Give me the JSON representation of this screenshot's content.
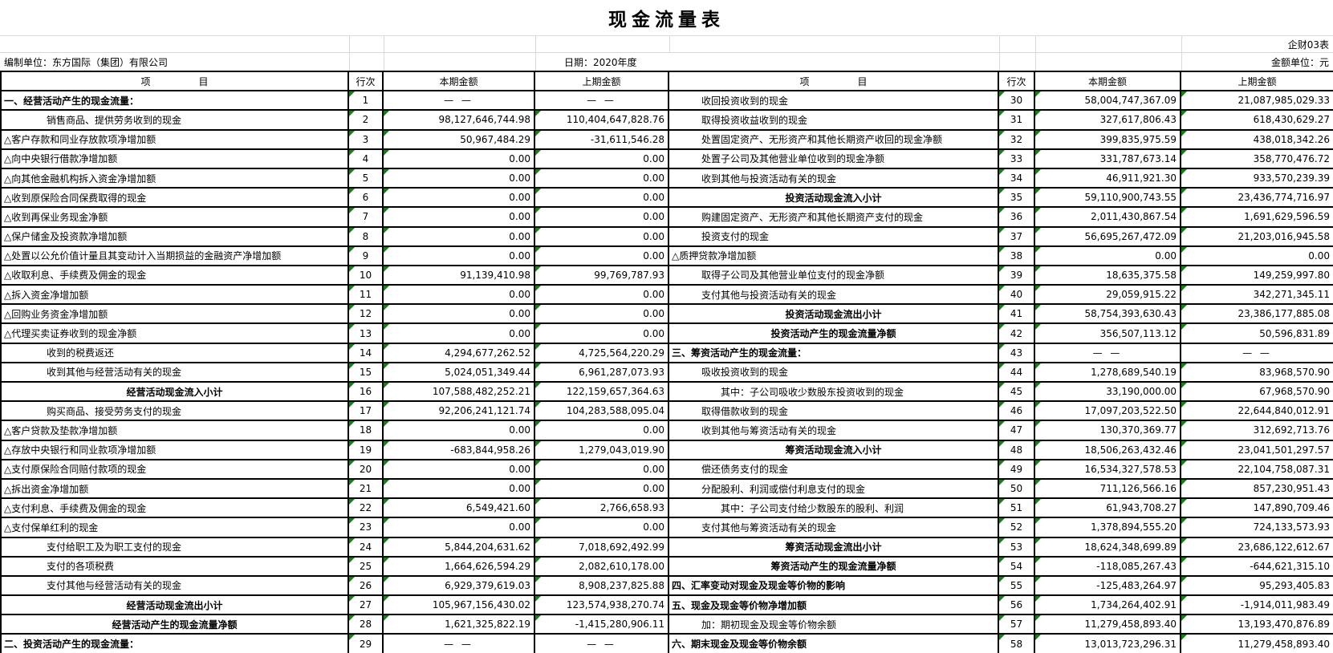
{
  "title": "现金流量表",
  "form_code": "企财03表",
  "prepared_by": "编制单位：东方国际（集团）有限公司",
  "report_date": "日期：2020年度",
  "unit": "金额单位：元",
  "header": {
    "item": "项　　　　　目",
    "line": "行次",
    "current": "本期金额",
    "prior": "上期金额"
  },
  "left_rows": [
    {
      "item": "一、经营活动产生的现金流量：",
      "line": "1",
      "cur": "— —",
      "pri": "— —",
      "style": "sec"
    },
    {
      "item": "销售商品、提供劳务收到的现金",
      "line": "2",
      "cur": "98,127,646,744.98",
      "pri": "110,404,647,828.76",
      "style": "i1"
    },
    {
      "item": "△客户存款和同业存放款项净增加额",
      "line": "3",
      "cur": "50,967,484.29",
      "pri": "-31,611,546.28",
      "style": "d0"
    },
    {
      "item": "△向中央银行借款净增加额",
      "line": "4",
      "cur": "0.00",
      "pri": "0.00",
      "style": "d0"
    },
    {
      "item": "△向其他金融机构拆入资金净增加额",
      "line": "5",
      "cur": "0.00",
      "pri": "0.00",
      "style": "d0"
    },
    {
      "item": "△收到原保险合同保费取得的现金",
      "line": "6",
      "cur": "0.00",
      "pri": "0.00",
      "style": "d0"
    },
    {
      "item": "△收到再保业务现金净额",
      "line": "7",
      "cur": "0.00",
      "pri": "0.00",
      "style": "d0"
    },
    {
      "item": "△保户储金及投资款净增加额",
      "line": "8",
      "cur": "0.00",
      "pri": "0.00",
      "style": "d0"
    },
    {
      "item": "△处置以公允价值计量且其变动计入当期损益的金融资产净增加额",
      "line": "9",
      "cur": "0.00",
      "pri": "0.00",
      "style": "d0"
    },
    {
      "item": "△收取利息、手续费及佣金的现金",
      "line": "10",
      "cur": "91,139,410.98",
      "pri": "99,769,787.93",
      "style": "d0"
    },
    {
      "item": "△拆入资金净增加额",
      "line": "11",
      "cur": "0.00",
      "pri": "0.00",
      "style": "d0"
    },
    {
      "item": "△回购业务资金净增加额",
      "line": "12",
      "cur": "0.00",
      "pri": "0.00",
      "style": "d0"
    },
    {
      "item": "△代理买卖证券收到的现金净额",
      "line": "13",
      "cur": "0.00",
      "pri": "0.00",
      "style": "d0"
    },
    {
      "item": "收到的税费返还",
      "line": "14",
      "cur": "4,294,677,262.52",
      "pri": "4,725,564,220.29",
      "style": "i1"
    },
    {
      "item": "收到其他与经营活动有关的现金",
      "line": "15",
      "cur": "5,024,051,349.44",
      "pri": "6,961,287,073.93",
      "style": "i1"
    },
    {
      "item": "经营活动现金流入小计",
      "line": "16",
      "cur": "107,588,482,252.21",
      "pri": "122,159,657,364.63",
      "style": "sub"
    },
    {
      "item": "购买商品、接受劳务支付的现金",
      "line": "17",
      "cur": "92,206,241,121.74",
      "pri": "104,283,588,095.04",
      "style": "i1"
    },
    {
      "item": "△客户贷款及垫款净增加额",
      "line": "18",
      "cur": "0.00",
      "pri": "0.00",
      "style": "d0"
    },
    {
      "item": "△存放中央银行和同业款项净增加额",
      "line": "19",
      "cur": "-683,844,958.26",
      "pri": "1,279,043,019.90",
      "style": "d0"
    },
    {
      "item": "△支付原保险合同赔付款项的现金",
      "line": "20",
      "cur": "0.00",
      "pri": "0.00",
      "style": "d0"
    },
    {
      "item": "△拆出资金净增加额",
      "line": "21",
      "cur": "0.00",
      "pri": "0.00",
      "style": "d0"
    },
    {
      "item": "△支付利息、手续费及佣金的现金",
      "line": "22",
      "cur": "6,549,421.60",
      "pri": "2,766,658.93",
      "style": "d0"
    },
    {
      "item": "△支付保单红利的现金",
      "line": "23",
      "cur": "0.00",
      "pri": "0.00",
      "style": "d0"
    },
    {
      "item": "支付给职工及为职工支付的现金",
      "line": "24",
      "cur": "5,844,204,631.62",
      "pri": "7,018,692,492.99",
      "style": "i1"
    },
    {
      "item": "支付的各项税费",
      "line": "25",
      "cur": "1,664,626,594.29",
      "pri": "2,082,610,178.00",
      "style": "i1"
    },
    {
      "item": "支付其他与经营活动有关的现金",
      "line": "26",
      "cur": "6,929,379,619.03",
      "pri": "8,908,237,825.88",
      "style": "i1"
    },
    {
      "item": "经营活动现金流出小计",
      "line": "27",
      "cur": "105,967,156,430.02",
      "pri": "123,574,938,270.74",
      "style": "sub"
    },
    {
      "item": "经营活动产生的现金流量净额",
      "line": "28",
      "cur": "1,621,325,822.19",
      "pri": "-1,415,280,906.11",
      "style": "sub"
    },
    {
      "item": "二、投资活动产生的现金流量：",
      "line": "29",
      "cur": "— —",
      "pri": "— —",
      "style": "sec"
    }
  ],
  "right_rows": [
    {
      "item": "收回投资收到的现金",
      "line": "30",
      "cur": "58,004,747,367.09",
      "pri": "21,087,985,029.33",
      "style": "i1"
    },
    {
      "item": "取得投资收益收到的现金",
      "line": "31",
      "cur": "327,617,806.43",
      "pri": "618,430,629.27",
      "style": "i1"
    },
    {
      "item": "处置固定资产、无形资产和其他长期资产收回的现金净额",
      "line": "32",
      "cur": "399,835,975.59",
      "pri": "438,018,342.26",
      "style": "i1"
    },
    {
      "item": "处置子公司及其他营业单位收到的现金净额",
      "line": "33",
      "cur": "331,787,673.14",
      "pri": "358,770,476.72",
      "style": "i1"
    },
    {
      "item": "收到其他与投资活动有关的现金",
      "line": "34",
      "cur": "46,911,921.30",
      "pri": "933,570,239.39",
      "style": "i1"
    },
    {
      "item": "投资活动现金流入小计",
      "line": "35",
      "cur": "59,110,900,743.55",
      "pri": "23,436,774,716.97",
      "style": "sub"
    },
    {
      "item": "购建固定资产、无形资产和其他长期资产支付的现金",
      "line": "36",
      "cur": "2,011,430,867.54",
      "pri": "1,691,629,596.59",
      "style": "i1"
    },
    {
      "item": "投资支付的现金",
      "line": "37",
      "cur": "56,695,267,472.09",
      "pri": "21,203,016,945.58",
      "style": "i1"
    },
    {
      "item": "△质押贷款净增加额",
      "line": "38",
      "cur": "0.00",
      "pri": "0.00",
      "style": "d0"
    },
    {
      "item": "取得子公司及其他营业单位支付的现金净额",
      "line": "39",
      "cur": "18,635,375.58",
      "pri": "149,259,997.80",
      "style": "i1"
    },
    {
      "item": "支付其他与投资活动有关的现金",
      "line": "40",
      "cur": "29,059,915.22",
      "pri": "342,271,345.11",
      "style": "i1"
    },
    {
      "item": "投资活动现金流出小计",
      "line": "41",
      "cur": "58,754,393,630.43",
      "pri": "23,386,177,885.08",
      "style": "sub"
    },
    {
      "item": "投资活动产生的现金流量净额",
      "line": "42",
      "cur": "356,507,113.12",
      "pri": "50,596,831.89",
      "style": "sub"
    },
    {
      "item": "三、筹资活动产生的现金流量：",
      "line": "43",
      "cur": "— —",
      "pri": "— —",
      "style": "sec"
    },
    {
      "item": "吸收投资收到的现金",
      "line": "44",
      "cur": "1,278,689,540.19",
      "pri": "83,968,570.90",
      "style": "i1"
    },
    {
      "item": "其中：子公司吸收少数股东投资收到的现金",
      "line": "45",
      "cur": "33,190,000.00",
      "pri": "67,968,570.90",
      "style": "i2"
    },
    {
      "item": "取得借款收到的现金",
      "line": "46",
      "cur": "17,097,203,522.50",
      "pri": "22,644,840,012.91",
      "style": "i1"
    },
    {
      "item": "收到其他与筹资活动有关的现金",
      "line": "47",
      "cur": "130,370,369.77",
      "pri": "312,692,713.76",
      "style": "i1"
    },
    {
      "item": "筹资活动现金流入小计",
      "line": "48",
      "cur": "18,506,263,432.46",
      "pri": "23,041,501,297.57",
      "style": "sub"
    },
    {
      "item": "偿还债务支付的现金",
      "line": "49",
      "cur": "16,534,327,578.53",
      "pri": "22,104,758,087.31",
      "style": "i1"
    },
    {
      "item": "分配股利、利润或偿付利息支付的现金",
      "line": "50",
      "cur": "711,126,566.16",
      "pri": "857,230,951.43",
      "style": "i1"
    },
    {
      "item": "其中：子公司支付给少数股东的股利、利润",
      "line": "51",
      "cur": "61,943,708.27",
      "pri": "147,890,709.46",
      "style": "i2"
    },
    {
      "item": "支付其他与筹资活动有关的现金",
      "line": "52",
      "cur": "1,378,894,555.20",
      "pri": "724,133,573.93",
      "style": "i1"
    },
    {
      "item": "筹资活动现金流出小计",
      "line": "53",
      "cur": "18,624,348,699.89",
      "pri": "23,686,122,612.67",
      "style": "sub"
    },
    {
      "item": "筹资活动产生的现金流量净额",
      "line": "54",
      "cur": "-118,085,267.43",
      "pri": "-644,621,315.10",
      "style": "sub"
    },
    {
      "item": "四、汇率变动对现金及现金等价物的影响",
      "line": "55",
      "cur": "-125,483,264.97",
      "pri": "95,293,405.83",
      "style": "sec"
    },
    {
      "item": "五、现金及现金等价物净增加额",
      "line": "56",
      "cur": "1,734,264,402.91",
      "pri": "-1,914,011,983.49",
      "style": "sec"
    },
    {
      "item": "加：期初现金及现金等价物余额",
      "line": "57",
      "cur": "11,279,458,893.40",
      "pri": "13,193,470,876.89",
      "style": "i1"
    },
    {
      "item": "六、期末现金及现金等价物余额",
      "line": "58",
      "cur": "13,013,723,296.31",
      "pri": "11,279,458,893.40",
      "style": "sec"
    }
  ]
}
